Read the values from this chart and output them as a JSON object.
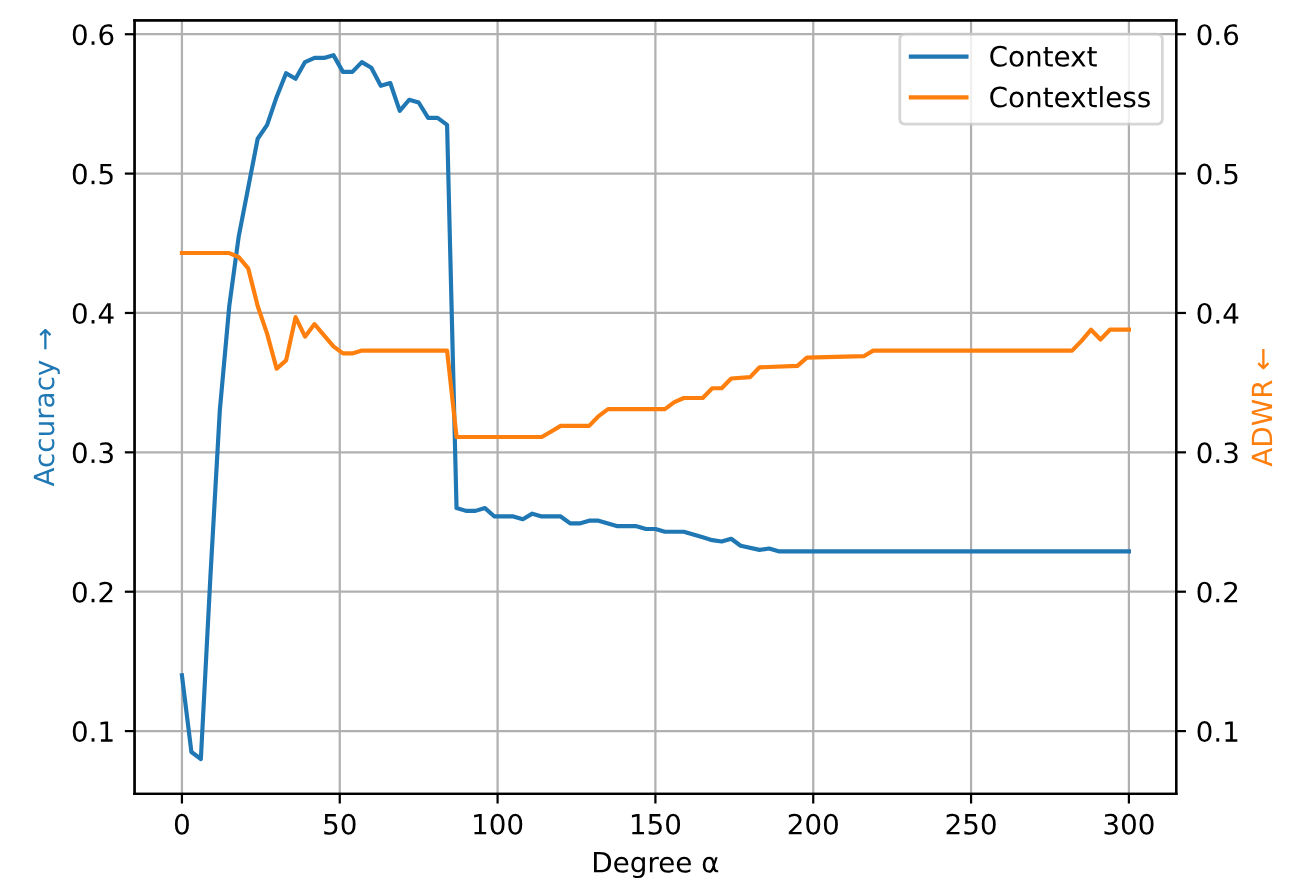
{
  "chart_data": {
    "type": "line",
    "xlabel": "Degree α",
    "ylabel": "Accuracy →",
    "y2label": "ADWR ←",
    "xlim": [
      -15,
      315
    ],
    "xticks": [
      0,
      50,
      100,
      150,
      200,
      250,
      300
    ],
    "ylim": [
      0.055,
      0.61
    ],
    "yticks": [
      0.1,
      0.2,
      0.3,
      0.4,
      0.5,
      0.6
    ],
    "y2lim": [
      0.055,
      0.61
    ],
    "y2ticks": [
      0.1,
      0.2,
      0.3,
      0.4,
      0.5,
      0.6
    ],
    "grid": true,
    "legend": "top right",
    "series": [
      {
        "name": "Context",
        "color": "#1f77b4",
        "x": [
          0,
          3,
          6,
          9,
          12,
          15,
          18,
          21,
          24,
          27,
          30,
          33,
          36,
          39,
          42,
          45,
          48,
          51,
          54,
          57,
          60,
          63,
          66,
          69,
          72,
          75,
          78,
          81,
          84,
          87,
          90,
          93,
          96,
          99,
          105,
          108,
          111,
          114,
          120,
          123,
          126,
          129,
          132,
          138,
          144,
          147,
          150,
          153,
          159,
          165,
          168,
          171,
          174,
          177,
          183,
          186,
          189,
          300
        ],
        "values": [
          0.14,
          0.085,
          0.08,
          0.21,
          0.33,
          0.405,
          0.455,
          0.49,
          0.525,
          0.535,
          0.555,
          0.572,
          0.568,
          0.58,
          0.583,
          0.583,
          0.585,
          0.573,
          0.573,
          0.58,
          0.576,
          0.563,
          0.565,
          0.545,
          0.553,
          0.551,
          0.54,
          0.54,
          0.535,
          0.26,
          0.258,
          0.258,
          0.26,
          0.254,
          0.254,
          0.252,
          0.256,
          0.254,
          0.254,
          0.249,
          0.249,
          0.251,
          0.251,
          0.247,
          0.247,
          0.245,
          0.245,
          0.243,
          0.243,
          0.239,
          0.237,
          0.236,
          0.238,
          0.233,
          0.23,
          0.231,
          0.229,
          0.229
        ]
      },
      {
        "name": "Contextless",
        "color": "#ff7f0e",
        "axis": "y2",
        "x": [
          0,
          15,
          18,
          21,
          24,
          27,
          30,
          33,
          36,
          39,
          42,
          48,
          51,
          54,
          57,
          84,
          87,
          114,
          117,
          120,
          129,
          132,
          135,
          153,
          156,
          159,
          165,
          168,
          171,
          174,
          180,
          183,
          195,
          198,
          216,
          219,
          282,
          285,
          288,
          291,
          294,
          300
        ],
        "values": [
          0.443,
          0.443,
          0.44,
          0.432,
          0.405,
          0.385,
          0.36,
          0.366,
          0.397,
          0.383,
          0.392,
          0.376,
          0.371,
          0.371,
          0.373,
          0.373,
          0.311,
          0.311,
          0.315,
          0.319,
          0.319,
          0.326,
          0.331,
          0.331,
          0.336,
          0.339,
          0.339,
          0.346,
          0.346,
          0.353,
          0.354,
          0.361,
          0.362,
          0.368,
          0.369,
          0.373,
          0.373,
          0.38,
          0.388,
          0.381,
          0.388,
          0.388
        ]
      }
    ]
  }
}
